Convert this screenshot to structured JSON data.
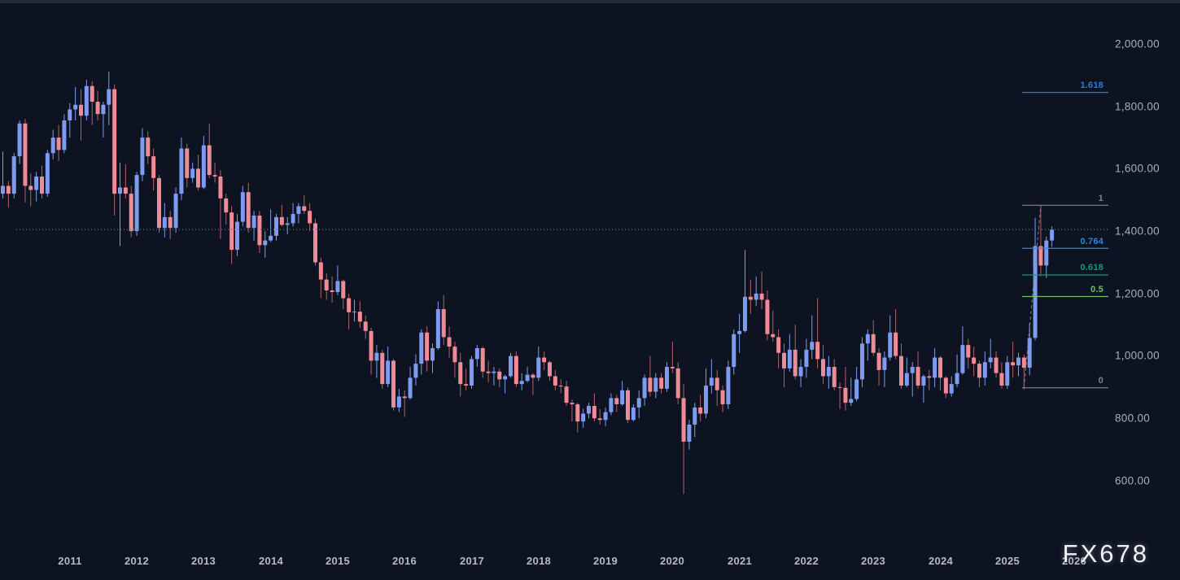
{
  "watermark": {
    "text": "FX678"
  },
  "colors": {
    "background": "#0D1320",
    "top_strip": "#242B3B",
    "candle_up": "#7E9CEF",
    "candle_down": "#F08A95",
    "wick_up": "#7E9CEF",
    "wick_down": "#B4606C",
    "axis_text": "#A9AEB9",
    "price_line": "#64759B",
    "trend_line": "#8A8F9B"
  },
  "chart_data": {
    "type": "candlestick",
    "timeframe": "monthly",
    "visible_range": {
      "from": "2010-01",
      "to": "2025-09"
    },
    "ylim": [
      460,
      2140
    ],
    "grid": false,
    "x_axis": {
      "labels": [
        "2011",
        "2012",
        "2013",
        "2014",
        "2015",
        "2016",
        "2017",
        "2018",
        "2019",
        "2020",
        "2021",
        "2022",
        "2023",
        "2024",
        "2025",
        "2026"
      ]
    },
    "y_axis": {
      "ticks": [
        2000,
        1800,
        1600,
        1400,
        1200,
        1000,
        800,
        600
      ],
      "labels": [
        "2,000.00",
        "1,800.00",
        "1,600.00",
        "1,400.00",
        "1,200.00",
        "1,000.00",
        "800.00",
        "600.00"
      ]
    },
    "price_line": {
      "price": 1405,
      "style": "dotted",
      "color": "#64759B"
    },
    "fib_retracement": {
      "anchor_low": {
        "month": "2025-04",
        "price": 898
      },
      "anchor_high": {
        "month": "2025-07",
        "price": 1483
      },
      "trend_line_style": "dashed",
      "levels": [
        {
          "label": "1.618",
          "price": 1844.5,
          "color": "#2D7BE0"
        },
        {
          "label": "1",
          "price": 1483,
          "color": "#81858F"
        },
        {
          "label": "0.764",
          "price": 1345,
          "color": "#2D87E0"
        },
        {
          "label": "0.618",
          "price": 1259.5,
          "color": "#15997B"
        },
        {
          "label": "0.5",
          "price": 1190.5,
          "color": "#6FBF6B"
        },
        {
          "label": "0",
          "price": 898,
          "color": "#81858F"
        }
      ]
    },
    "candles": [
      [
        "2010-01",
        1520,
        1655,
        1505,
        1545
      ],
      [
        "2010-02",
        1545,
        1560,
        1475,
        1520
      ],
      [
        "2010-03",
        1520,
        1650,
        1505,
        1640
      ],
      [
        "2010-04",
        1640,
        1755,
        1615,
        1745
      ],
      [
        "2010-05",
        1745,
        1760,
        1492,
        1545
      ],
      [
        "2010-06",
        1545,
        1585,
        1480,
        1532
      ],
      [
        "2010-07",
        1532,
        1590,
        1495,
        1575
      ],
      [
        "2010-08",
        1575,
        1610,
        1505,
        1520
      ],
      [
        "2010-09",
        1520,
        1660,
        1510,
        1650
      ],
      [
        "2010-10",
        1650,
        1725,
        1630,
        1700
      ],
      [
        "2010-11",
        1700,
        1740,
        1625,
        1660
      ],
      [
        "2010-12",
        1660,
        1775,
        1650,
        1755
      ],
      [
        "2011-01",
        1755,
        1810,
        1700,
        1790
      ],
      [
        "2011-02",
        1790,
        1862,
        1755,
        1805
      ],
      [
        "2011-03",
        1805,
        1855,
        1690,
        1770
      ],
      [
        "2011-04",
        1770,
        1885,
        1755,
        1865
      ],
      [
        "2011-05",
        1865,
        1880,
        1740,
        1815
      ],
      [
        "2011-06",
        1815,
        1850,
        1755,
        1775
      ],
      [
        "2011-07",
        1775,
        1815,
        1700,
        1805
      ],
      [
        "2011-08",
        1805,
        1912,
        1740,
        1855
      ],
      [
        "2011-09",
        1855,
        1870,
        1450,
        1520
      ],
      [
        "2011-10",
        1520,
        1620,
        1352,
        1540
      ],
      [
        "2011-11",
        1540,
        1615,
        1505,
        1520
      ],
      [
        "2011-12",
        1520,
        1545,
        1380,
        1400
      ],
      [
        "2012-01",
        1400,
        1590,
        1385,
        1580
      ],
      [
        "2012-02",
        1580,
        1730,
        1560,
        1700
      ],
      [
        "2012-03",
        1700,
        1720,
        1615,
        1640
      ],
      [
        "2012-04",
        1640,
        1665,
        1530,
        1570
      ],
      [
        "2012-05",
        1570,
        1580,
        1395,
        1410
      ],
      [
        "2012-06",
        1410,
        1490,
        1380,
        1445
      ],
      [
        "2012-07",
        1445,
        1465,
        1375,
        1410
      ],
      [
        "2012-08",
        1410,
        1540,
        1395,
        1520
      ],
      [
        "2012-09",
        1520,
        1700,
        1500,
        1665
      ],
      [
        "2012-10",
        1665,
        1680,
        1540,
        1570
      ],
      [
        "2012-11",
        1570,
        1620,
        1555,
        1600
      ],
      [
        "2012-12",
        1600,
        1645,
        1530,
        1540
      ],
      [
        "2013-01",
        1540,
        1705,
        1535,
        1675
      ],
      [
        "2013-02",
        1675,
        1745,
        1570,
        1580
      ],
      [
        "2013-03",
        1580,
        1620,
        1555,
        1575
      ],
      [
        "2013-04",
        1575,
        1595,
        1375,
        1505
      ],
      [
        "2013-05",
        1505,
        1520,
        1420,
        1460
      ],
      [
        "2013-06",
        1460,
        1480,
        1295,
        1340
      ],
      [
        "2013-07",
        1340,
        1455,
        1320,
        1430
      ],
      [
        "2013-08",
        1430,
        1545,
        1415,
        1525
      ],
      [
        "2013-09",
        1525,
        1555,
        1395,
        1410
      ],
      [
        "2013-10",
        1410,
        1465,
        1370,
        1450
      ],
      [
        "2013-11",
        1450,
        1465,
        1330,
        1355
      ],
      [
        "2013-12",
        1355,
        1400,
        1315,
        1370
      ],
      [
        "2014-01",
        1370,
        1470,
        1365,
        1385
      ],
      [
        "2014-02",
        1385,
        1455,
        1370,
        1445
      ],
      [
        "2014-03",
        1445,
        1485,
        1415,
        1420
      ],
      [
        "2014-04",
        1420,
        1445,
        1390,
        1425
      ],
      [
        "2014-05",
        1425,
        1490,
        1415,
        1455
      ],
      [
        "2014-06",
        1455,
        1490,
        1425,
        1480
      ],
      [
        "2014-07",
        1480,
        1515,
        1455,
        1465
      ],
      [
        "2014-08",
        1465,
        1490,
        1400,
        1425
      ],
      [
        "2014-09",
        1425,
        1440,
        1290,
        1300
      ],
      [
        "2014-10",
        1300,
        1315,
        1185,
        1245
      ],
      [
        "2014-11",
        1245,
        1265,
        1180,
        1210
      ],
      [
        "2014-12",
        1210,
        1255,
        1170,
        1205
      ],
      [
        "2015-01",
        1205,
        1290,
        1195,
        1240
      ],
      [
        "2015-02",
        1240,
        1245,
        1150,
        1185
      ],
      [
        "2015-03",
        1185,
        1200,
        1085,
        1140
      ],
      [
        "2015-04",
        1140,
        1180,
        1110,
        1142
      ],
      [
        "2015-05",
        1142,
        1175,
        1090,
        1110
      ],
      [
        "2015-06",
        1110,
        1130,
        1055,
        1080
      ],
      [
        "2015-07",
        1080,
        1090,
        940,
        985
      ],
      [
        "2015-08",
        985,
        1035,
        930,
        1010
      ],
      [
        "2015-09",
        1010,
        1020,
        895,
        910
      ],
      [
        "2015-10",
        910,
        1030,
        900,
        985
      ],
      [
        "2015-11",
        985,
        990,
        825,
        835
      ],
      [
        "2015-12",
        835,
        895,
        820,
        870
      ],
      [
        "2016-01",
        870,
        890,
        805,
        865
      ],
      [
        "2016-02",
        865,
        965,
        860,
        930
      ],
      [
        "2016-03",
        930,
        1005,
        905,
        975
      ],
      [
        "2016-04",
        975,
        1085,
        940,
        1075
      ],
      [
        "2016-05",
        1075,
        1095,
        950,
        985
      ],
      [
        "2016-06",
        985,
        1040,
        945,
        1025
      ],
      [
        "2016-07",
        1025,
        1175,
        1020,
        1150
      ],
      [
        "2016-08",
        1150,
        1195,
        1035,
        1060
      ],
      [
        "2016-09",
        1060,
        1095,
        995,
        1030
      ],
      [
        "2016-10",
        1030,
        1045,
        930,
        980
      ],
      [
        "2016-11",
        980,
        1010,
        870,
        910
      ],
      [
        "2016-12",
        910,
        960,
        890,
        905
      ],
      [
        "2017-01",
        905,
        1000,
        895,
        990
      ],
      [
        "2017-02",
        990,
        1035,
        965,
        1025
      ],
      [
        "2017-03",
        1025,
        1030,
        930,
        950
      ],
      [
        "2017-04",
        950,
        985,
        915,
        945
      ],
      [
        "2017-05",
        945,
        965,
        905,
        950
      ],
      [
        "2017-06",
        950,
        960,
        900,
        925
      ],
      [
        "2017-07",
        925,
        940,
        880,
        935
      ],
      [
        "2017-08",
        935,
        1010,
        930,
        1000
      ],
      [
        "2017-09",
        1000,
        1015,
        900,
        910
      ],
      [
        "2017-10",
        910,
        945,
        890,
        920
      ],
      [
        "2017-11",
        920,
        965,
        915,
        940
      ],
      [
        "2017-12",
        940,
        945,
        875,
        930
      ],
      [
        "2018-01",
        930,
        1030,
        920,
        995
      ],
      [
        "2018-02",
        995,
        1015,
        955,
        980
      ],
      [
        "2018-03",
        980,
        985,
        920,
        935
      ],
      [
        "2018-04",
        935,
        955,
        890,
        905
      ],
      [
        "2018-05",
        905,
        925,
        880,
        902
      ],
      [
        "2018-06",
        902,
        920,
        840,
        850
      ],
      [
        "2018-07",
        850,
        860,
        790,
        845
      ],
      [
        "2018-08",
        845,
        850,
        755,
        790
      ],
      [
        "2018-09",
        790,
        830,
        770,
        815
      ],
      [
        "2018-10",
        815,
        850,
        800,
        840
      ],
      [
        "2018-11",
        840,
        880,
        790,
        800
      ],
      [
        "2018-12",
        800,
        830,
        780,
        795
      ],
      [
        "2019-01",
        795,
        835,
        775,
        820
      ],
      [
        "2019-02",
        820,
        880,
        810,
        865
      ],
      [
        "2019-03",
        865,
        875,
        820,
        845
      ],
      [
        "2019-04",
        845,
        920,
        840,
        890
      ],
      [
        "2019-05",
        890,
        900,
        785,
        795
      ],
      [
        "2019-06",
        795,
        845,
        790,
        835
      ],
      [
        "2019-07",
        835,
        890,
        800,
        865
      ],
      [
        "2019-08",
        865,
        940,
        840,
        930
      ],
      [
        "2019-09",
        930,
        1000,
        870,
        885
      ],
      [
        "2019-10",
        885,
        945,
        865,
        930
      ],
      [
        "2019-11",
        930,
        945,
        880,
        895
      ],
      [
        "2019-12",
        895,
        980,
        885,
        965
      ],
      [
        "2020-01",
        965,
        1045,
        945,
        960
      ],
      [
        "2020-02",
        960,
        980,
        845,
        865
      ],
      [
        "2020-03",
        865,
        910,
        558,
        725
      ],
      [
        "2020-04",
        725,
        795,
        700,
        780
      ],
      [
        "2020-05",
        780,
        850,
        740,
        835
      ],
      [
        "2020-06",
        835,
        875,
        790,
        815
      ],
      [
        "2020-07",
        815,
        960,
        800,
        905
      ],
      [
        "2020-08",
        905,
        990,
        880,
        930
      ],
      [
        "2020-09",
        930,
        955,
        840,
        890
      ],
      [
        "2020-10",
        890,
        905,
        820,
        845
      ],
      [
        "2020-11",
        845,
        985,
        830,
        965
      ],
      [
        "2020-12",
        965,
        1085,
        940,
        1070
      ],
      [
        "2021-01",
        1070,
        1135,
        1010,
        1080
      ],
      [
        "2021-02",
        1080,
        1340,
        1075,
        1190
      ],
      [
        "2021-03",
        1190,
        1245,
        1135,
        1180
      ],
      [
        "2021-04",
        1180,
        1255,
        1160,
        1200
      ],
      [
        "2021-05",
        1200,
        1270,
        1150,
        1180
      ],
      [
        "2021-06",
        1180,
        1210,
        1050,
        1070
      ],
      [
        "2021-07",
        1070,
        1145,
        1045,
        1060
      ],
      [
        "2021-08",
        1060,
        1085,
        960,
        1010
      ],
      [
        "2021-09",
        1010,
        1040,
        900,
        960
      ],
      [
        "2021-10",
        960,
        1070,
        950,
        1020
      ],
      [
        "2021-11",
        1020,
        1100,
        925,
        935
      ],
      [
        "2021-12",
        935,
        990,
        900,
        965
      ],
      [
        "2022-01",
        965,
        1055,
        930,
        1020
      ],
      [
        "2022-02",
        1020,
        1130,
        990,
        1045
      ],
      [
        "2022-03",
        1045,
        1185,
        960,
        990
      ],
      [
        "2022-04",
        990,
        1035,
        910,
        935
      ],
      [
        "2022-05",
        935,
        1000,
        895,
        965
      ],
      [
        "2022-06",
        965,
        990,
        890,
        900
      ],
      [
        "2022-07",
        900,
        915,
        830,
        898
      ],
      [
        "2022-08",
        898,
        965,
        825,
        850
      ],
      [
        "2022-09",
        850,
        930,
        840,
        862
      ],
      [
        "2022-10",
        862,
        965,
        855,
        925
      ],
      [
        "2022-11",
        925,
        1060,
        900,
        1040
      ],
      [
        "2022-12",
        1040,
        1085,
        985,
        1070
      ],
      [
        "2023-01",
        1070,
        1115,
        1000,
        1010
      ],
      [
        "2023-02",
        1010,
        1025,
        905,
        955
      ],
      [
        "2023-03",
        955,
        1015,
        900,
        995
      ],
      [
        "2023-04",
        995,
        1130,
        985,
        1075
      ],
      [
        "2023-05",
        1075,
        1150,
        990,
        1000
      ],
      [
        "2023-06",
        1000,
        1040,
        895,
        905
      ],
      [
        "2023-07",
        905,
        995,
        900,
        945
      ],
      [
        "2023-08",
        945,
        980,
        870,
        965
      ],
      [
        "2023-09",
        965,
        1015,
        895,
        905
      ],
      [
        "2023-10",
        905,
        940,
        850,
        935
      ],
      [
        "2023-11",
        935,
        955,
        890,
        930
      ],
      [
        "2023-12",
        930,
        1025,
        900,
        995
      ],
      [
        "2024-01",
        995,
        1000,
        890,
        930
      ],
      [
        "2024-02",
        930,
        935,
        865,
        880
      ],
      [
        "2024-03",
        880,
        935,
        870,
        910
      ],
      [
        "2024-04",
        910,
        1005,
        900,
        945
      ],
      [
        "2024-05",
        945,
        1095,
        940,
        1035
      ],
      [
        "2024-06",
        1035,
        1055,
        960,
        995
      ],
      [
        "2024-07",
        995,
        1030,
        935,
        975
      ],
      [
        "2024-08",
        975,
        985,
        900,
        930
      ],
      [
        "2024-09",
        930,
        1015,
        905,
        980
      ],
      [
        "2024-10",
        980,
        1055,
        960,
        995
      ],
      [
        "2024-11",
        995,
        1015,
        930,
        945
      ],
      [
        "2024-12",
        945,
        980,
        895,
        905
      ],
      [
        "2025-01",
        905,
        1000,
        895,
        980
      ],
      [
        "2025-02",
        980,
        1045,
        930,
        970
      ],
      [
        "2025-03",
        970,
        1010,
        935,
        995
      ],
      [
        "2025-04",
        995,
        1005,
        893,
        962
      ],
      [
        "2025-05",
        962,
        1105,
        938,
        1058
      ],
      [
        "2025-06",
        1058,
        1443,
        1050,
        1352
      ],
      [
        "2025-07",
        1352,
        1484,
        1255,
        1290
      ],
      [
        "2025-08",
        1290,
        1382,
        1250,
        1370
      ],
      [
        "2025-09",
        1370,
        1415,
        1350,
        1405
      ]
    ]
  }
}
